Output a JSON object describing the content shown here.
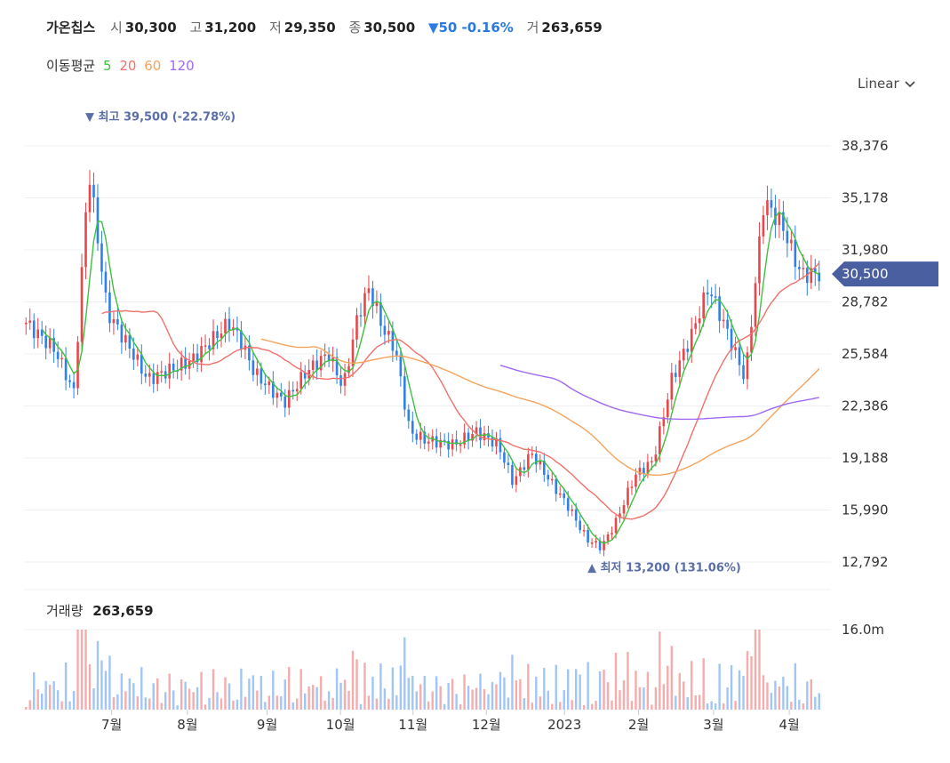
{
  "header": {
    "name": "가온칩스",
    "open_label": "시",
    "open": "30,300",
    "high_label": "고",
    "high": "31,200",
    "low_label": "저",
    "low": "29,350",
    "close_label": "종",
    "close": "30,500",
    "change": "▼50 -0.16%",
    "volume_label": "거",
    "volume": "263,659"
  },
  "ma_legend": {
    "label": "이동평균",
    "items": [
      {
        "text": "5",
        "color": "#3ec13e"
      },
      {
        "text": "20",
        "color": "#f0706a"
      },
      {
        "text": "60",
        "color": "#f5a35c"
      },
      {
        "text": "120",
        "color": "#a068f5"
      }
    ]
  },
  "scale_selector": "Linear",
  "annotations": {
    "high": {
      "prefix": "▼ 최고",
      "value": "39,500",
      "pct": "(-22.78%)"
    },
    "low": {
      "prefix": "▲ 최저",
      "value": "13,200",
      "pct": "(131.06%)"
    }
  },
  "volume_panel": {
    "label": "거래량",
    "value": "263,659",
    "axis_label": "16.0m"
  },
  "colors": {
    "up": "#e8464a",
    "down": "#2f80e8",
    "grid": "#eef0f3",
    "price_tag": "#4a5fa0"
  },
  "chart_data": {
    "type": "candlestick",
    "y_ticks": [
      38376,
      35178,
      31980,
      28782,
      25584,
      22386,
      19188,
      15990,
      12792
    ],
    "y_tick_labels": [
      "38,376",
      "35,178",
      "31,980",
      "28,782",
      "25,584",
      "22,386",
      "19,188",
      "15,990",
      "12,792"
    ],
    "current_price": 30500,
    "current_price_label": "30,500",
    "x_labels": [
      "7월",
      "8월",
      "9월",
      "10월",
      "11월",
      "12월",
      "2023",
      "2월",
      "3월",
      "4월"
    ],
    "high_point": {
      "value": 39500
    },
    "low_point": {
      "value": 13200
    },
    "series": [
      {
        "name": "5",
        "color": "#3ec13e"
      },
      {
        "name": "20",
        "color": "#f0706a"
      },
      {
        "name": "60",
        "color": "#f5a35c"
      },
      {
        "name": "120",
        "color": "#a068f5"
      }
    ]
  }
}
